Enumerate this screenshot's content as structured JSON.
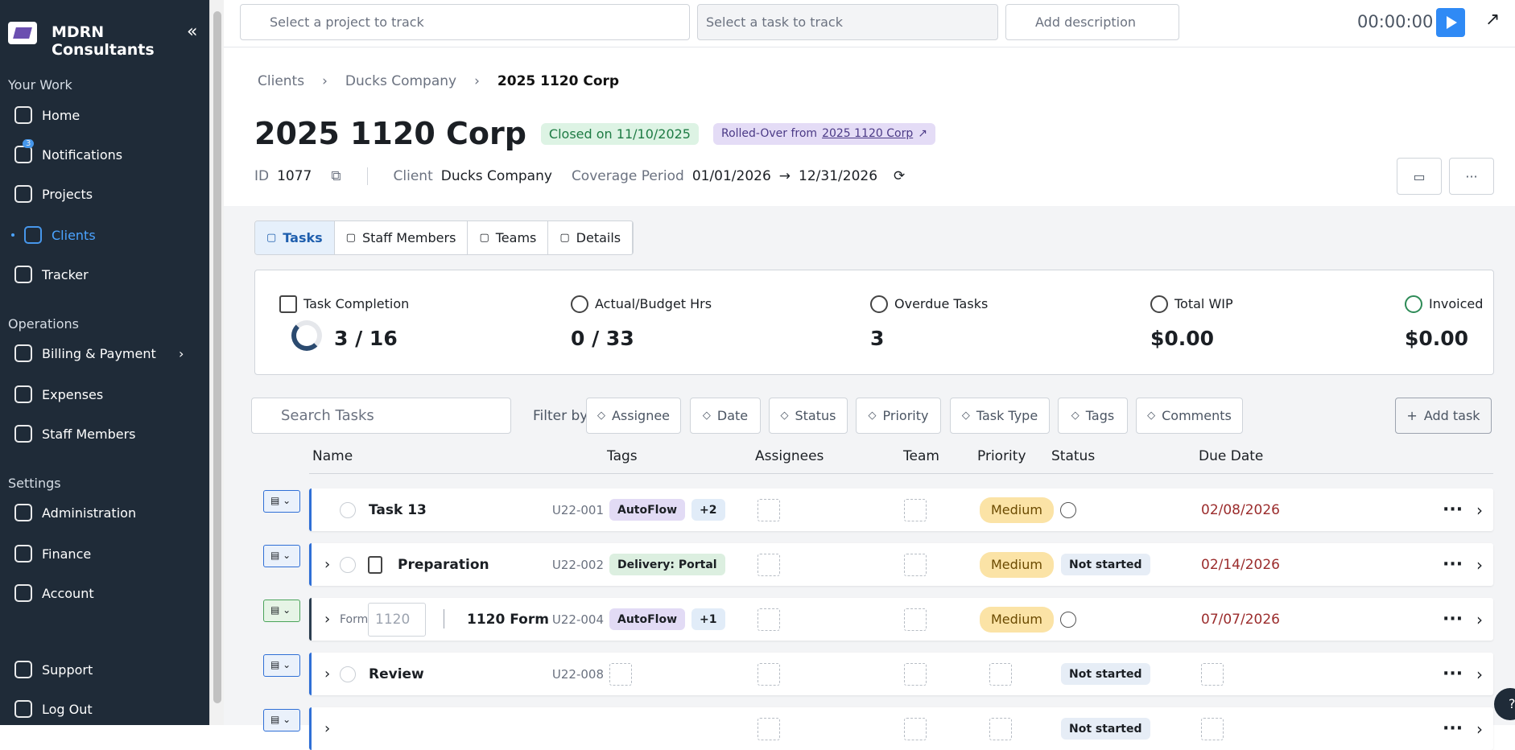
{
  "sidebar": {
    "brand": "MDRN Consultants",
    "notification_count": "3",
    "groups": [
      {
        "title": "Your Work",
        "items": [
          "Home",
          "Notifications",
          "Projects",
          "Clients",
          "Tracker"
        ]
      },
      {
        "title": "Operations",
        "items": [
          "Billing & Payment",
          "Expenses",
          "Staff Members"
        ]
      },
      {
        "title": "Settings",
        "items": [
          "Administration",
          "Finance",
          "Account"
        ]
      }
    ],
    "footer": [
      "Support",
      "Log Out"
    ]
  },
  "topbar": {
    "project_placeholder": "Select a project to track",
    "task_placeholder": "Select a task to track",
    "description_placeholder": "Add description",
    "timer": "00:00:00"
  },
  "breadcrumb": [
    "Clients",
    "Ducks Company",
    "2025 1120 Corp"
  ],
  "header": {
    "title": "2025 1120 Corp",
    "status": "Closed on 11/10/2025",
    "rollover_prefix": "Rolled-Over from",
    "rollover_link": "2025 1120 Corp",
    "id_label": "ID",
    "id": "1077",
    "client_label": "Client",
    "client": "Ducks Company",
    "coverage_label": "Coverage Period",
    "coverage_start": "01/01/2026",
    "coverage_end": "12/31/2026"
  },
  "tabs": [
    "Tasks",
    "Staff Members",
    "Teams",
    "Details"
  ],
  "stats": [
    {
      "label": "Task Completion",
      "value": "3 / 16"
    },
    {
      "label": "Actual/Budget Hrs",
      "value": "0 / 33"
    },
    {
      "label": "Overdue Tasks",
      "value": "3"
    },
    {
      "label": "Total WIP",
      "value": "$0.00"
    },
    {
      "label": "Invoiced",
      "value": "$0.00"
    }
  ],
  "filters": {
    "search_placeholder": "Search Tasks",
    "filter_label": "Filter by",
    "items": [
      "Assignee",
      "Date",
      "Status",
      "Priority",
      "Task Type",
      "Tags",
      "Comments"
    ],
    "add": "Add task"
  },
  "table": {
    "columns": [
      "Name",
      "Tags",
      "Assignees",
      "Team",
      "Priority",
      "Status",
      "Due Date"
    ],
    "rows": [
      {
        "name": "Task 13",
        "code": "U22-001",
        "tags": [
          "AutoFlow",
          "+2"
        ],
        "priority": "Medium",
        "due": "02/08/2026"
      },
      {
        "name": "Preparation",
        "code": "U22-002",
        "tags": [
          "Delivery: Portal"
        ],
        "priority": "Medium",
        "status": "Not started",
        "due": "02/14/2026"
      },
      {
        "form_label": "Form",
        "form_number": "1120",
        "name": "1120 Form",
        "code": "U22-004",
        "tags": [
          "AutoFlow",
          "+1"
        ],
        "priority": "Medium",
        "due": "07/07/2026"
      },
      {
        "name": "Review",
        "code": "U22-008",
        "status": "Not started"
      },
      {
        "status": "Not started"
      }
    ]
  }
}
